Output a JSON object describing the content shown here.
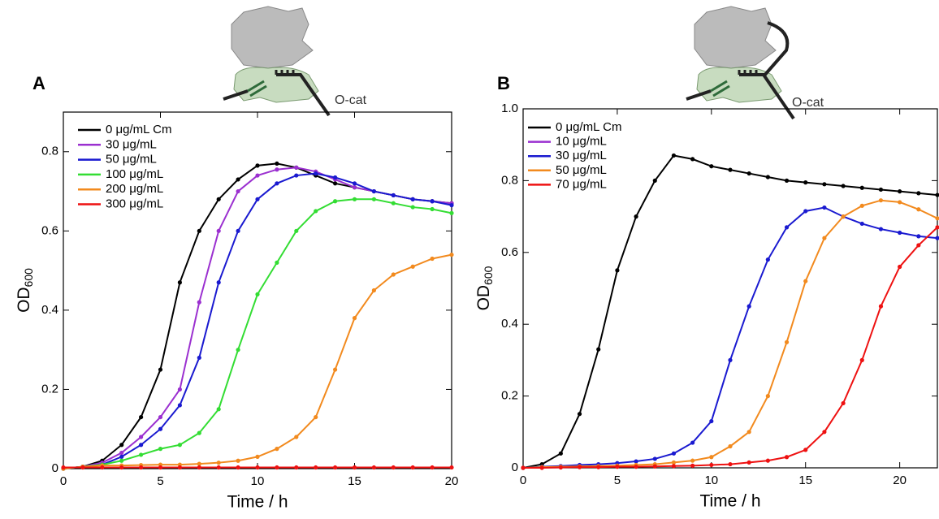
{
  "chart_data": [
    {
      "type": "line",
      "panel_label": "A",
      "annotation": "O-cat",
      "xlabel": "Time / h",
      "ylabel": "OD",
      "ylabel_sub": "600",
      "xlim": [
        0,
        20
      ],
      "ylim": [
        0,
        0.9
      ],
      "xticks": [
        0,
        5,
        10,
        15,
        20
      ],
      "yticks": [
        0,
        0.2,
        0.4,
        0.6,
        0.8
      ],
      "x": [
        0,
        1,
        2,
        3,
        4,
        5,
        6,
        7,
        8,
        9,
        10,
        11,
        12,
        13,
        14,
        15,
        16,
        17,
        18,
        19,
        20
      ],
      "series": [
        {
          "name": "0 μg/mL Cm",
          "color": "#000000",
          "values": [
            0,
            0.005,
            0.02,
            0.06,
            0.13,
            0.25,
            0.47,
            0.6,
            0.68,
            0.73,
            0.765,
            0.77,
            0.76,
            0.74,
            0.72,
            0.71,
            0.7,
            0.69,
            0.68,
            0.675,
            0.67
          ]
        },
        {
          "name": "30 μg/mL",
          "color": "#9b30d0",
          "values": [
            0,
            0.005,
            0.015,
            0.04,
            0.08,
            0.13,
            0.2,
            0.42,
            0.6,
            0.7,
            0.74,
            0.755,
            0.76,
            0.75,
            0.73,
            0.71,
            0.7,
            0.69,
            0.68,
            0.675,
            0.67
          ]
        },
        {
          "name": "50 μg/mL",
          "color": "#1a1ad0",
          "values": [
            0,
            0.005,
            0.01,
            0.03,
            0.06,
            0.1,
            0.16,
            0.28,
            0.47,
            0.6,
            0.68,
            0.72,
            0.74,
            0.745,
            0.735,
            0.72,
            0.7,
            0.69,
            0.68,
            0.675,
            0.665
          ]
        },
        {
          "name": "100 μg/mL",
          "color": "#33dd33",
          "values": [
            0,
            0.005,
            0.01,
            0.02,
            0.035,
            0.05,
            0.06,
            0.09,
            0.15,
            0.3,
            0.44,
            0.52,
            0.6,
            0.65,
            0.675,
            0.68,
            0.68,
            0.67,
            0.66,
            0.655,
            0.645
          ]
        },
        {
          "name": "200 μg/mL",
          "color": "#f28a1e",
          "values": [
            0,
            0.005,
            0.008,
            0.008,
            0.009,
            0.01,
            0.01,
            0.012,
            0.015,
            0.02,
            0.03,
            0.05,
            0.08,
            0.13,
            0.25,
            0.38,
            0.45,
            0.49,
            0.51,
            0.53,
            0.54
          ]
        },
        {
          "name": "300 μg/mL",
          "color": "#ee1111",
          "values": [
            0.003,
            0.003,
            0.003,
            0.003,
            0.003,
            0.003,
            0.003,
            0.003,
            0.003,
            0.003,
            0.003,
            0.003,
            0.003,
            0.003,
            0.003,
            0.003,
            0.003,
            0.003,
            0.003,
            0.003,
            0.003
          ]
        }
      ]
    },
    {
      "type": "line",
      "panel_label": "B",
      "annotation": "O-cat",
      "xlabel": "Time / h",
      "ylabel": "OD",
      "ylabel_sub": "600",
      "xlim": [
        0,
        22
      ],
      "ylim": [
        0,
        1
      ],
      "xticks": [
        0,
        5,
        10,
        15,
        20
      ],
      "yticks": [
        0,
        0.2,
        0.4,
        0.6,
        0.8,
        {
          "value": 1,
          "label": "1.0"
        }
      ],
      "x": [
        0,
        1,
        2,
        3,
        4,
        5,
        6,
        7,
        8,
        9,
        10,
        11,
        12,
        13,
        14,
        15,
        16,
        17,
        18,
        19,
        20,
        21,
        22
      ],
      "series": [
        {
          "name": "0 μg/mL Cm",
          "color": "#000000",
          "values": [
            0,
            0.01,
            0.04,
            0.15,
            0.33,
            0.55,
            0.7,
            0.8,
            0.87,
            0.86,
            0.84,
            0.83,
            0.82,
            0.81,
            0.8,
            0.795,
            0.79,
            0.785,
            0.78,
            0.775,
            0.77,
            0.765,
            0.76
          ]
        },
        {
          "name": "10 μg/mL",
          "color": "#9b30d0",
          "values": [
            null,
            null,
            null,
            null,
            null,
            null,
            null,
            null,
            null,
            null,
            null,
            null,
            null,
            null,
            null,
            null,
            null,
            null,
            null,
            null,
            null,
            null,
            null
          ]
        },
        {
          "name": "30 μg/mL",
          "color": "#1a1ad0",
          "values": [
            0,
            0.003,
            0.005,
            0.008,
            0.01,
            0.013,
            0.018,
            0.025,
            0.04,
            0.07,
            0.13,
            0.3,
            0.45,
            0.58,
            0.67,
            0.715,
            0.725,
            0.7,
            0.68,
            0.665,
            0.655,
            0.645,
            0.64
          ]
        },
        {
          "name": "50 μg/mL",
          "color": "#f28a1e",
          "values": [
            0,
            0.002,
            0.003,
            0.004,
            0.005,
            0.006,
            0.008,
            0.01,
            0.015,
            0.02,
            0.03,
            0.06,
            0.1,
            0.2,
            0.35,
            0.52,
            0.64,
            0.7,
            0.73,
            0.745,
            0.74,
            0.72,
            0.695
          ]
        },
        {
          "name": "70 μg/mL",
          "color": "#ee1111",
          "values": [
            0,
            0,
            0.001,
            0.002,
            0.002,
            0.003,
            0.003,
            0.004,
            0.005,
            0.006,
            0.008,
            0.01,
            0.015,
            0.02,
            0.03,
            0.05,
            0.1,
            0.18,
            0.3,
            0.45,
            0.56,
            0.62,
            0.67
          ]
        }
      ]
    }
  ]
}
